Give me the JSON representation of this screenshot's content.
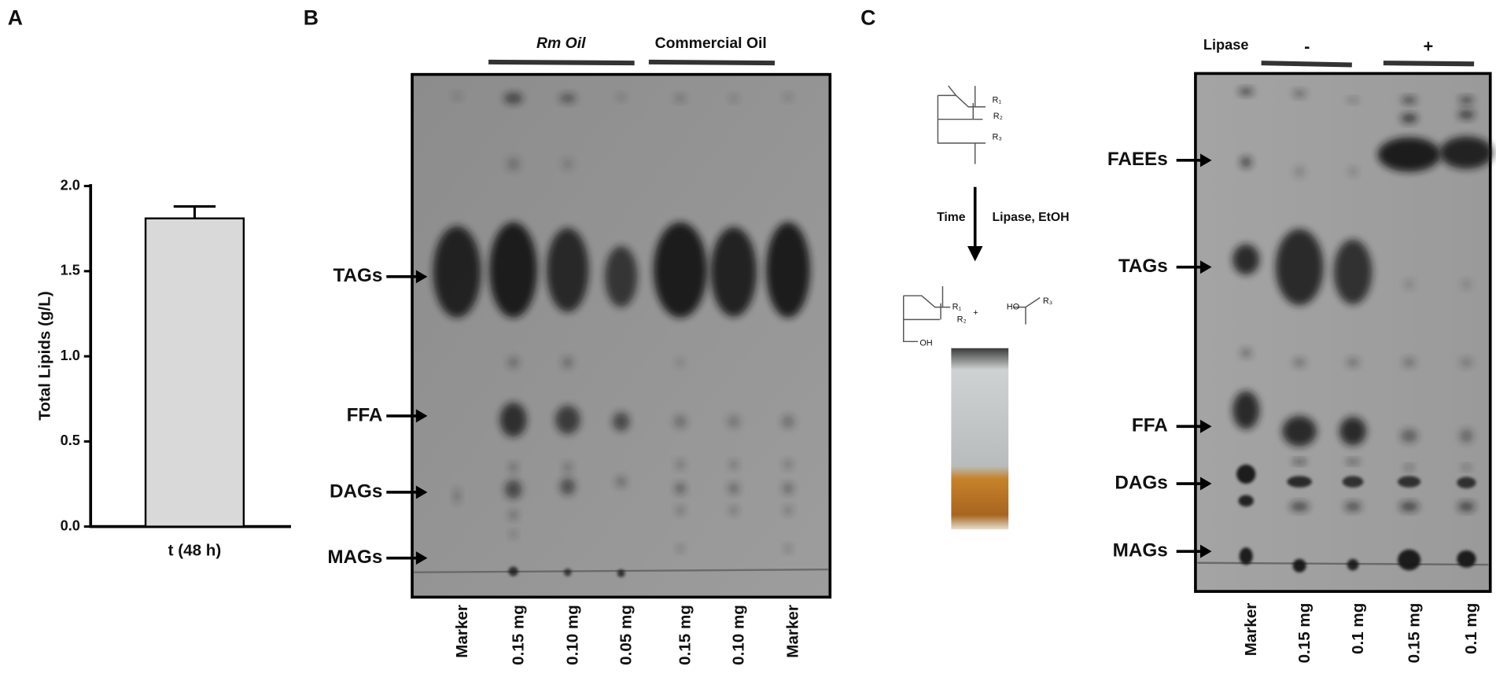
{
  "chart_data": {
    "type": "bar",
    "panel_label": "A",
    "ylabel": "Total Lipids (g/L)",
    "categories": [
      "t (48 h)"
    ],
    "values": [
      1.81
    ],
    "errors": [
      0.07
    ],
    "color": "#d9d9d9",
    "ylim": [
      0,
      2
    ],
    "yticks": [
      {
        "value": 0,
        "label": "0.0"
      },
      {
        "value": 0.5,
        "label": "0.5"
      },
      {
        "value": 1,
        "label": "1.0"
      },
      {
        "value": 1.5,
        "label": "1.5"
      },
      {
        "value": 2,
        "label": "2.0"
      }
    ]
  },
  "panel_b": {
    "label": "B",
    "groups": [
      "Rm Oil",
      "Commercial Oil"
    ],
    "bands": [
      "TAGs",
      "FFA",
      "DAGs",
      "MAGs"
    ],
    "lanes": [
      "Marker",
      "0.15 mg",
      "0.10 mg",
      "0.05 mg",
      "0.15 mg",
      "0.10 mg",
      "Marker"
    ]
  },
  "panel_c": {
    "label": "C",
    "scheme": {
      "time": "Time",
      "conditions": "Lipase, EtOH",
      "reactant_labels": [
        "R₁",
        "R₂",
        "R₃"
      ],
      "product_labels": [
        "R₁",
        "R₂",
        "+",
        "HO",
        "R₃",
        "OH"
      ]
    },
    "treatment_label": "Lipase",
    "groups": [
      "-",
      "+"
    ],
    "bands": [
      "FAEEs",
      "TAGs",
      "FFA",
      "DAGs",
      "MAGs"
    ],
    "lanes": [
      "Marker",
      "0.15 mg",
      "0.1 mg",
      "0.15 mg",
      "0.1 mg"
    ]
  }
}
